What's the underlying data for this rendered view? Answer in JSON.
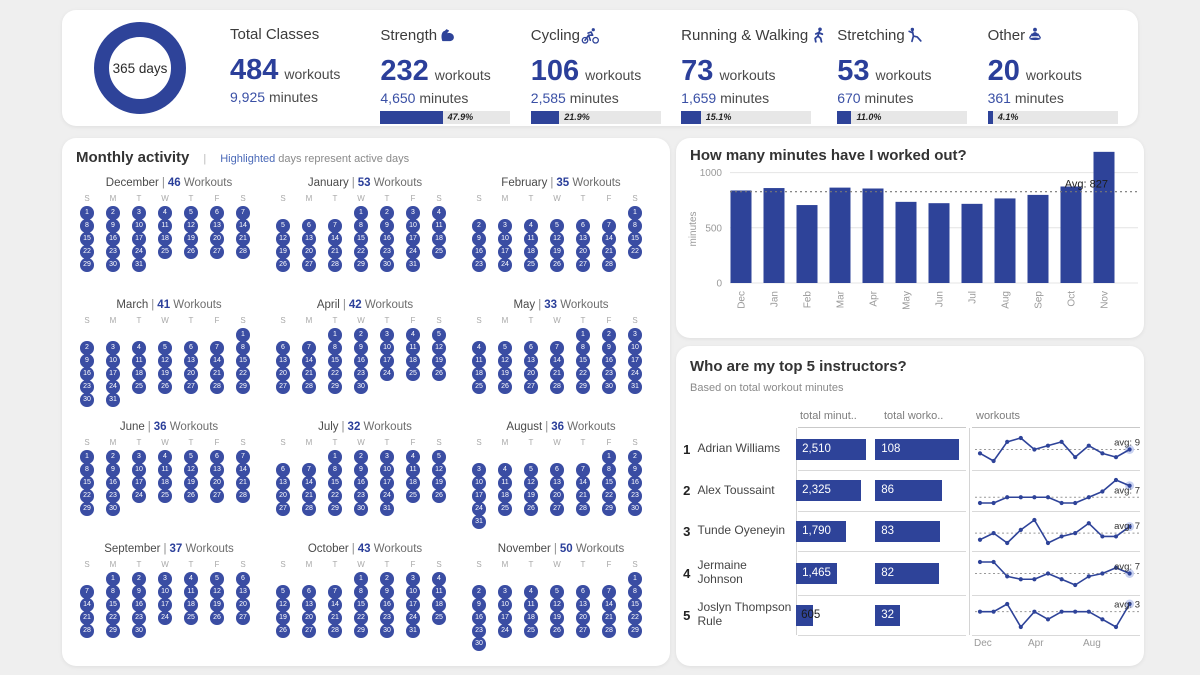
{
  "colors": {
    "accent": "#2e4399",
    "day_circle": "#3a4da3",
    "highlight_blue": "#4a69b8",
    "track": "#e7e7e7"
  },
  "summary": {
    "donut_label": "365 days",
    "workouts_suffix": "workouts",
    "minutes_suffix": "minutes",
    "cards": [
      {
        "title": "Total Classes",
        "icon": null,
        "workouts": "484",
        "minutes": "9,925",
        "pct_label": null,
        "pct": null
      },
      {
        "title": "Strength",
        "icon": "bicep-icon",
        "workouts": "232",
        "minutes": "4,650",
        "pct_label": "47.9%",
        "pct": 47.9
      },
      {
        "title": "Cycling",
        "icon": "cyclist-icon",
        "workouts": "106",
        "minutes": "2,585",
        "pct_label": "21.9%",
        "pct": 21.9
      },
      {
        "title": "Running & Walking",
        "icon": "runner-icon",
        "workouts": "73",
        "minutes": "1,659",
        "pct_label": "15.1%",
        "pct": 15.1
      },
      {
        "title": "Stretching",
        "icon": "stretching-icon",
        "workouts": "53",
        "minutes": "670",
        "pct_label": "11.0%",
        "pct": 11.0
      },
      {
        "title": "Other",
        "icon": "meditation-icon",
        "workouts": "20",
        "minutes": "361",
        "pct_label": "4.1%",
        "pct": 4.1
      }
    ]
  },
  "monthly": {
    "title": "Monthly activity",
    "separator": "|",
    "legend_highlight": "Highlighted",
    "legend_rest": "days represent active days",
    "workouts_label": "Workouts",
    "dow": [
      "S",
      "M",
      "T",
      "W",
      "T",
      "F",
      "S"
    ],
    "months": [
      {
        "name": "December",
        "workouts": "46",
        "start_dow": 0,
        "days": 31
      },
      {
        "name": "January",
        "workouts": "53",
        "start_dow": 3,
        "days": 31
      },
      {
        "name": "February",
        "workouts": "35",
        "start_dow": 6,
        "days": 28
      },
      {
        "name": "March",
        "workouts": "41",
        "start_dow": 6,
        "days": 31
      },
      {
        "name": "April",
        "workouts": "42",
        "start_dow": 2,
        "days": 30
      },
      {
        "name": "May",
        "workouts": "33",
        "start_dow": 4,
        "days": 31
      },
      {
        "name": "June",
        "workouts": "36",
        "start_dow": 0,
        "days": 30
      },
      {
        "name": "July",
        "workouts": "32",
        "start_dow": 2,
        "days": 31
      },
      {
        "name": "August",
        "workouts": "36",
        "start_dow": 5,
        "days": 31
      },
      {
        "name": "September",
        "workouts": "37",
        "start_dow": 1,
        "days": 30
      },
      {
        "name": "October",
        "workouts": "43",
        "start_dow": 3,
        "days": 31
      },
      {
        "name": "November",
        "workouts": "50",
        "start_dow": 6,
        "days": 30
      }
    ]
  },
  "chart_data": [
    {
      "type": "bar",
      "title": "How many minutes have I worked out?",
      "xlabel": "",
      "ylabel": "minutes",
      "categories": [
        "Dec",
        "Jan",
        "Feb",
        "Mar",
        "Apr",
        "May",
        "Jun",
        "Jul",
        "Aug",
        "Sep",
        "Oct",
        "Nov"
      ],
      "values": [
        838,
        860,
        706,
        864,
        856,
        735,
        723,
        717,
        766,
        798,
        874,
        1188
      ],
      "avg": 827,
      "avg_label": "Avg: 827",
      "yticks": [
        0,
        500,
        1000
      ],
      "ylim": [
        0,
        1250
      ],
      "grid": true,
      "legend_position": "none"
    },
    {
      "type": "line",
      "title": "workouts",
      "x": [
        "Dec",
        "Jan",
        "Feb",
        "Mar",
        "Apr",
        "May",
        "Jun",
        "Jul",
        "Aug",
        "Sep",
        "Oct",
        "Nov"
      ],
      "shown_x_labels": [
        "Dec",
        "Apr",
        "Aug"
      ],
      "series": [
        {
          "name": "Adrian Williams",
          "values": [
            8,
            6,
            11,
            12,
            9,
            10,
            11,
            7,
            10,
            8,
            7,
            9
          ],
          "avg": 9,
          "avg_label": "avg: 9"
        },
        {
          "name": "Alex Toussaint",
          "values": [
            6,
            6,
            7,
            7,
            7,
            7,
            6,
            6,
            7,
            8,
            10,
            9
          ],
          "avg": 7,
          "avg_label": "avg: 7"
        },
        {
          "name": "Tunde Oyeneyin",
          "values": [
            5,
            7,
            4,
            8,
            11,
            4,
            6,
            7,
            10,
            6,
            6,
            9
          ],
          "avg": 7,
          "avg_label": "avg: 7"
        },
        {
          "name": "Jermaine Johnson",
          "values": [
            11,
            11,
            6,
            5,
            5,
            7,
            5,
            3,
            6,
            7,
            9,
            7
          ],
          "avg": 7,
          "avg_label": "avg: 7"
        },
        {
          "name": "Joslyn Thompson Rule",
          "values": [
            3,
            3,
            4,
            1,
            3,
            2,
            3,
            3,
            3,
            2,
            1,
            4
          ],
          "avg": 3,
          "avg_label": "avg: 3"
        }
      ]
    }
  ],
  "instructors": {
    "title": "Who are my top 5 instructors?",
    "subtitle": "Based on total workout minutes",
    "columns": [
      "total minut..",
      "total worko..",
      "workouts"
    ],
    "axis_labels": [
      "Dec",
      "Apr",
      "Aug"
    ],
    "rows": [
      {
        "rank": "1",
        "name": "Adrian Williams",
        "minutes_label": "2,510",
        "minutes": 2510,
        "workouts_label": "108",
        "workouts": 108
      },
      {
        "rank": "2",
        "name": "Alex Toussaint",
        "minutes_label": "2,325",
        "minutes": 2325,
        "workouts_label": "86",
        "workouts": 86
      },
      {
        "rank": "3",
        "name": "Tunde Oyeneyin",
        "minutes_label": "1,790",
        "minutes": 1790,
        "workouts_label": "83",
        "workouts": 83
      },
      {
        "rank": "4",
        "name": "Jermaine Johnson",
        "minutes_label": "1,465",
        "minutes": 1465,
        "workouts_label": "82",
        "workouts": 82
      },
      {
        "rank": "5",
        "name": "Joslyn Thompson Rule",
        "minutes_label": "605",
        "minutes": 605,
        "workouts_label": "32",
        "workouts": 32
      }
    ]
  }
}
